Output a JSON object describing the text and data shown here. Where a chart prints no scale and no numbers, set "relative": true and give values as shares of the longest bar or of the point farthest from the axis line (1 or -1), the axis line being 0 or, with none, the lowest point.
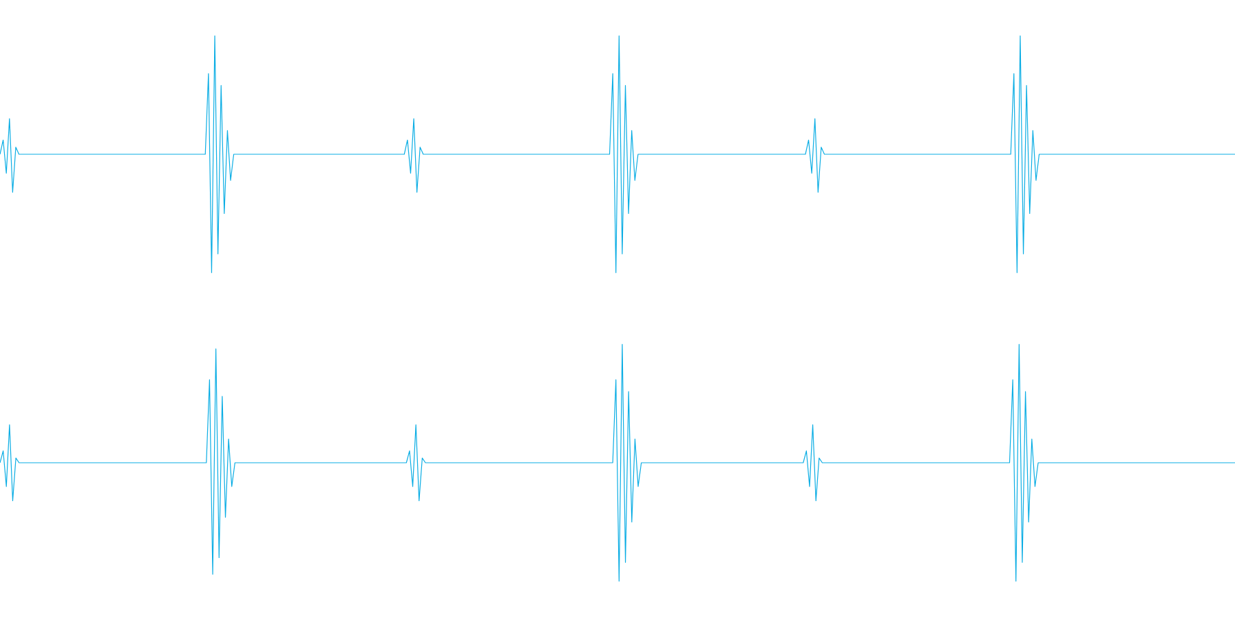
{
  "chart_data": [
    {
      "type": "line",
      "relative": true,
      "marker": "none",
      "line_style": "solid",
      "categories": [
        null,
        null,
        null,
        null,
        null,
        null,
        null,
        null,
        null,
        null,
        null,
        null,
        null,
        null,
        null,
        null,
        null,
        null,
        null,
        null,
        null,
        null,
        null,
        null,
        null,
        null,
        null,
        null,
        null,
        null,
        null,
        null,
        null,
        null,
        null,
        null,
        null,
        null,
        null,
        null,
        null,
        null,
        null,
        null,
        null,
        null,
        null,
        null,
        null,
        null,
        null,
        null,
        null,
        null,
        null,
        null,
        null,
        null,
        null,
        null,
        null,
        null,
        null,
        null,
        null,
        null,
        null,
        null,
        null,
        null,
        null,
        null,
        null,
        null,
        null,
        null,
        null,
        null,
        null,
        null,
        null,
        null,
        null,
        null,
        null,
        null,
        null,
        null,
        null,
        null,
        null,
        null,
        null,
        null,
        null,
        null,
        null,
        null,
        null,
        null,
        null,
        null,
        null,
        null,
        null,
        null,
        null,
        null,
        null,
        null,
        null,
        null,
        null,
        null,
        null,
        null,
        null,
        null,
        null,
        null,
        null,
        null,
        null,
        null,
        null,
        null,
        null,
        null,
        null,
        null,
        null,
        null,
        null,
        null,
        null,
        null,
        null,
        null,
        null,
        null,
        null,
        null,
        null,
        null,
        null,
        null,
        null,
        null,
        null,
        null,
        null,
        null,
        null,
        null,
        null,
        null,
        null,
        null,
        null,
        null,
        null,
        null,
        null,
        null,
        null,
        null,
        null,
        null,
        null,
        null,
        null,
        null,
        null,
        null,
        null,
        null,
        null,
        null,
        null,
        null,
        null,
        null,
        null,
        null,
        null,
        null,
        null,
        null,
        null,
        null,
        null,
        null,
        null,
        null,
        null,
        null,
        null,
        null,
        null,
        null,
        null,
        null,
        null,
        null,
        null,
        null,
        null,
        null,
        null,
        null,
        null,
        null,
        null,
        null,
        null,
        null,
        null,
        null,
        null,
        null,
        null,
        null,
        null,
        null,
        null,
        null,
        null,
        null,
        null,
        null,
        null,
        null,
        null,
        null,
        null,
        null,
        null,
        null,
        null,
        null,
        null,
        null,
        null,
        null,
        null,
        null,
        null,
        null,
        null,
        null,
        null,
        null,
        null,
        null,
        null,
        null,
        null,
        null,
        null,
        null,
        null,
        null,
        null,
        null,
        null,
        null,
        null,
        null,
        null,
        null,
        null,
        null,
        null,
        null,
        null,
        null,
        null,
        null,
        null,
        null,
        null,
        null,
        null,
        null,
        null,
        null,
        null,
        null,
        null,
        null,
        null,
        null,
        null,
        null,
        null,
        null,
        null,
        null,
        null,
        null,
        null,
        null,
        null,
        null,
        null,
        null,
        null,
        null,
        null,
        null,
        null,
        null,
        null,
        null,
        null,
        null,
        null,
        null,
        null,
        null,
        null,
        null,
        null,
        null,
        null,
        null,
        null,
        null,
        null,
        null,
        null,
        null,
        null,
        null,
        null,
        null,
        null,
        null,
        null,
        null,
        null,
        null,
        null,
        null,
        null,
        null,
        null,
        null,
        null,
        null,
        null,
        null,
        null,
        null,
        null,
        null,
        null,
        null,
        null,
        null,
        null,
        null,
        null,
        null,
        null,
        null,
        null,
        null,
        null,
        null,
        null,
        null,
        null,
        null,
        null,
        null,
        null,
        null,
        null,
        null,
        null,
        null,
        null,
        null,
        null,
        null,
        null,
        null,
        null,
        null,
        null,
        null
      ],
      "series": [
        {
          "color": "#0aade4",
          "values": [
            0.5,
            0.56,
            0.42,
            0.65,
            0.34,
            0.53,
            0.5,
            0.5,
            0.5,
            0.5,
            0.5,
            0.5,
            0.5,
            0.5,
            0.5,
            0.5,
            0.5,
            0.5,
            0.5,
            0.5,
            0.5,
            0.5,
            0.5,
            0.5,
            0.5,
            0.5,
            0.5,
            0.5,
            0.5,
            0.5,
            0.5,
            0.5,
            0.5,
            0.5,
            0.5,
            0.5,
            0.5,
            0.5,
            0.5,
            0.5,
            0.5,
            0.5,
            0.5,
            0.5,
            0.5,
            0.5,
            0.5,
            0.5,
            0.5,
            0.5,
            0.5,
            0.5,
            0.5,
            0.5,
            0.5,
            0.5,
            0.5,
            0.5,
            0.5,
            0.5,
            0.5,
            0.5,
            0.5,
            0.5,
            0.5,
            0.5,
            0.84,
            0,
            1,
            0.08,
            0.79,
            0.25,
            0.6,
            0.39,
            0.5,
            0.5,
            0.5,
            0.5,
            0.5,
            0.5,
            0.5,
            0.5,
            0.5,
            0.5,
            0.5,
            0.5,
            0.5,
            0.5,
            0.5,
            0.5,
            0.5,
            0.5,
            0.5,
            0.5,
            0.5,
            0.5,
            0.5,
            0.5,
            0.5,
            0.5,
            0.5,
            0.5,
            0.5,
            0.5,
            0.5,
            0.5,
            0.5,
            0.5,
            0.5,
            0.5,
            0.5,
            0.5,
            0.5,
            0.5,
            0.5,
            0.5,
            0.5,
            0.5,
            0.5,
            0.5,
            0.5,
            0.5,
            0.5,
            0.5,
            0.5,
            0.5,
            0.5,
            0.5,
            0.5,
            0.56,
            0.42,
            0.65,
            0.34,
            0.53,
            0.5,
            0.5,
            0.5,
            0.5,
            0.5,
            0.5,
            0.5,
            0.5,
            0.5,
            0.5,
            0.5,
            0.5,
            0.5,
            0.5,
            0.5,
            0.5,
            0.5,
            0.5,
            0.5,
            0.5,
            0.5,
            0.5,
            0.5,
            0.5,
            0.5,
            0.5,
            0.5,
            0.5,
            0.5,
            0.5,
            0.5,
            0.5,
            0.5,
            0.5,
            0.5,
            0.5,
            0.5,
            0.5,
            0.5,
            0.5,
            0.5,
            0.5,
            0.5,
            0.5,
            0.5,
            0.5,
            0.5,
            0.5,
            0.5,
            0.5,
            0.5,
            0.5,
            0.5,
            0.5,
            0.5,
            0.5,
            0.5,
            0.5,
            0.5,
            0.5,
            0.84,
            0,
            1,
            0.08,
            0.79,
            0.25,
            0.6,
            0.39,
            0.5,
            0.5,
            0.5,
            0.5,
            0.5,
            0.5,
            0.5,
            0.5,
            0.5,
            0.5,
            0.5,
            0.5,
            0.5,
            0.5,
            0.5,
            0.5,
            0.5,
            0.5,
            0.5,
            0.5,
            0.5,
            0.5,
            0.5,
            0.5,
            0.5,
            0.5,
            0.5,
            0.5,
            0.5,
            0.5,
            0.5,
            0.5,
            0.5,
            0.5,
            0.5,
            0.5,
            0.5,
            0.5,
            0.5,
            0.5,
            0.5,
            0.5,
            0.5,
            0.5,
            0.5,
            0.5,
            0.5,
            0.5,
            0.5,
            0.5,
            0.5,
            0.5,
            0.5,
            0.5,
            0.56,
            0.42,
            0.65,
            0.34,
            0.53,
            0.5,
            0.5,
            0.5,
            0.5,
            0.5,
            0.5,
            0.5,
            0.5,
            0.5,
            0.5,
            0.5,
            0.5,
            0.5,
            0.5,
            0.5,
            0.5,
            0.5,
            0.5,
            0.5,
            0.5,
            0.5,
            0.5,
            0.5,
            0.5,
            0.5,
            0.5,
            0.5,
            0.5,
            0.5,
            0.5,
            0.5,
            0.5,
            0.5,
            0.5,
            0.5,
            0.5,
            0.5,
            0.5,
            0.5,
            0.5,
            0.5,
            0.5,
            0.5,
            0.5,
            0.5,
            0.5,
            0.5,
            0.5,
            0.5,
            0.5,
            0.5,
            0.5,
            0.5,
            0.5,
            0.5,
            0.5,
            0.5,
            0.5,
            0.5,
            0.5,
            0.84,
            0,
            1,
            0.08,
            0.79,
            0.25,
            0.6,
            0.39,
            0.5,
            0.5,
            0.5,
            0.5,
            0.5,
            0.5,
            0.5,
            0.5,
            0.5,
            0.5,
            0.5,
            0.5,
            0.5,
            0.5,
            0.5,
            0.5,
            0.5,
            0.5,
            0.5,
            0.5,
            0.5,
            0.5,
            0.5,
            0.5,
            0.5,
            0.5,
            0.5,
            0.5,
            0.5,
            0.5,
            0.5,
            0.5,
            0.5,
            0.5,
            0.5,
            0.5,
            0.5,
            0.5,
            0.5,
            0.5,
            0.5,
            0.5,
            0.5,
            0.5,
            0.5,
            0.5,
            0.5,
            0.5,
            0.5,
            0.5,
            0.5,
            0.5,
            0.5,
            0.5,
            0.5,
            0.5,
            0.5,
            0.5,
            0.5,
            0.5,
            0.5,
            0.5,
            0.5
          ]
        }
      ]
    },
    {
      "type": "line",
      "relative": true,
      "marker": "none",
      "line_style": "solid",
      "categories": [
        null,
        null,
        null,
        null,
        null,
        null,
        null,
        null,
        null,
        null,
        null,
        null,
        null,
        null,
        null,
        null,
        null,
        null,
        null,
        null,
        null,
        null,
        null,
        null,
        null,
        null,
        null,
        null,
        null,
        null,
        null,
        null,
        null,
        null,
        null,
        null,
        null,
        null,
        null,
        null,
        null,
        null,
        null,
        null,
        null,
        null,
        null,
        null,
        null,
        null,
        null,
        null,
        null,
        null,
        null,
        null,
        null,
        null,
        null,
        null,
        null,
        null,
        null,
        null,
        null,
        null,
        null,
        null,
        null,
        null,
        null,
        null,
        null,
        null,
        null,
        null,
        null,
        null,
        null,
        null,
        null,
        null,
        null,
        null,
        null,
        null,
        null,
        null,
        null,
        null,
        null,
        null,
        null,
        null,
        null,
        null,
        null,
        null,
        null,
        null,
        null,
        null,
        null,
        null,
        null,
        null,
        null,
        null,
        null,
        null,
        null,
        null,
        null,
        null,
        null,
        null,
        null,
        null,
        null,
        null,
        null,
        null,
        null,
        null,
        null,
        null,
        null,
        null,
        null,
        null,
        null,
        null,
        null,
        null,
        null,
        null,
        null,
        null,
        null,
        null,
        null,
        null,
        null,
        null,
        null,
        null,
        null,
        null,
        null,
        null,
        null,
        null,
        null,
        null,
        null,
        null,
        null,
        null,
        null,
        null,
        null,
        null,
        null,
        null,
        null,
        null,
        null,
        null,
        null,
        null,
        null,
        null,
        null,
        null,
        null,
        null,
        null,
        null,
        null,
        null,
        null,
        null,
        null,
        null,
        null,
        null,
        null,
        null,
        null,
        null,
        null,
        null,
        null,
        null,
        null,
        null,
        null,
        null,
        null,
        null,
        null,
        null,
        null,
        null,
        null,
        null,
        null,
        null,
        null,
        null,
        null,
        null,
        null,
        null,
        null,
        null,
        null,
        null,
        null,
        null,
        null,
        null,
        null,
        null,
        null,
        null,
        null,
        null,
        null,
        null,
        null,
        null,
        null,
        null,
        null,
        null,
        null,
        null,
        null,
        null,
        null,
        null,
        null,
        null,
        null,
        null,
        null,
        null,
        null,
        null,
        null,
        null,
        null,
        null,
        null,
        null,
        null,
        null,
        null,
        null,
        null,
        null,
        null,
        null,
        null,
        null,
        null,
        null,
        null,
        null,
        null,
        null,
        null,
        null,
        null,
        null,
        null,
        null,
        null,
        null,
        null,
        null,
        null,
        null,
        null,
        null,
        null,
        null,
        null,
        null,
        null,
        null,
        null,
        null,
        null,
        null,
        null,
        null,
        null,
        null,
        null,
        null,
        null,
        null,
        null,
        null,
        null,
        null,
        null,
        null,
        null,
        null,
        null,
        null,
        null,
        null,
        null,
        null,
        null,
        null,
        null,
        null,
        null,
        null,
        null,
        null,
        null,
        null,
        null,
        null,
        null,
        null,
        null,
        null,
        null,
        null,
        null,
        null,
        null,
        null,
        null,
        null,
        null,
        null,
        null,
        null,
        null,
        null,
        null,
        null,
        null,
        null,
        null,
        null,
        null,
        null,
        null,
        null,
        null,
        null,
        null,
        null,
        null,
        null,
        null,
        null,
        null,
        null,
        null,
        null,
        null,
        null,
        null,
        null,
        null,
        null,
        null,
        null,
        null,
        null,
        null,
        null,
        null,
        null,
        null,
        null,
        null,
        null,
        null,
        null
      ],
      "series": [
        {
          "color": "#0aade4",
          "values": [
            0.5,
            0.55,
            0.4,
            0.66,
            0.34,
            0.52,
            0.5,
            0.5,
            0.5,
            0.5,
            0.5,
            0.5,
            0.5,
            0.5,
            0.5,
            0.5,
            0.5,
            0.5,
            0.5,
            0.5,
            0.5,
            0.5,
            0.5,
            0.5,
            0.5,
            0.5,
            0.5,
            0.5,
            0.5,
            0.5,
            0.5,
            0.5,
            0.5,
            0.5,
            0.5,
            0.5,
            0.5,
            0.5,
            0.5,
            0.5,
            0.5,
            0.5,
            0.5,
            0.5,
            0.5,
            0.5,
            0.5,
            0.5,
            0.5,
            0.5,
            0.5,
            0.5,
            0.5,
            0.5,
            0.5,
            0.5,
            0.5,
            0.5,
            0.5,
            0.5,
            0.5,
            0.5,
            0.5,
            0.5,
            0.5,
            0.5,
            0.85,
            0.03,
            0.98,
            0.1,
            0.78,
            0.27,
            0.6,
            0.4,
            0.5,
            0.5,
            0.5,
            0.5,
            0.5,
            0.5,
            0.5,
            0.5,
            0.5,
            0.5,
            0.5,
            0.5,
            0.5,
            0.5,
            0.5,
            0.5,
            0.5,
            0.5,
            0.5,
            0.5,
            0.5,
            0.5,
            0.5,
            0.5,
            0.5,
            0.5,
            0.5,
            0.5,
            0.5,
            0.5,
            0.5,
            0.5,
            0.5,
            0.5,
            0.5,
            0.5,
            0.5,
            0.5,
            0.5,
            0.5,
            0.5,
            0.5,
            0.5,
            0.5,
            0.5,
            0.5,
            0.5,
            0.5,
            0.5,
            0.5,
            0.5,
            0.5,
            0.5,
            0.5,
            0.5,
            0.55,
            0.4,
            0.66,
            0.34,
            0.52,
            0.5,
            0.5,
            0.5,
            0.5,
            0.5,
            0.5,
            0.5,
            0.5,
            0.5,
            0.5,
            0.5,
            0.5,
            0.5,
            0.5,
            0.5,
            0.5,
            0.5,
            0.5,
            0.5,
            0.5,
            0.5,
            0.5,
            0.5,
            0.5,
            0.5,
            0.5,
            0.5,
            0.5,
            0.5,
            0.5,
            0.5,
            0.5,
            0.5,
            0.5,
            0.5,
            0.5,
            0.5,
            0.5,
            0.5,
            0.5,
            0.5,
            0.5,
            0.5,
            0.5,
            0.5,
            0.5,
            0.5,
            0.5,
            0.5,
            0.5,
            0.5,
            0.5,
            0.5,
            0.5,
            0.5,
            0.5,
            0.5,
            0.5,
            0.5,
            0.5,
            0.85,
            0,
            1,
            0.08,
            0.8,
            0.25,
            0.6,
            0.4,
            0.5,
            0.5,
            0.5,
            0.5,
            0.5,
            0.5,
            0.5,
            0.5,
            0.5,
            0.5,
            0.5,
            0.5,
            0.5,
            0.5,
            0.5,
            0.5,
            0.5,
            0.5,
            0.5,
            0.5,
            0.5,
            0.5,
            0.5,
            0.5,
            0.5,
            0.5,
            0.5,
            0.5,
            0.5,
            0.5,
            0.5,
            0.5,
            0.5,
            0.5,
            0.5,
            0.5,
            0.5,
            0.5,
            0.5,
            0.5,
            0.5,
            0.5,
            0.5,
            0.5,
            0.5,
            0.5,
            0.5,
            0.5,
            0.5,
            0.5,
            0.5,
            0.5,
            0.55,
            0.4,
            0.66,
            0.34,
            0.52,
            0.5,
            0.5,
            0.5,
            0.5,
            0.5,
            0.5,
            0.5,
            0.5,
            0.5,
            0.5,
            0.5,
            0.5,
            0.5,
            0.5,
            0.5,
            0.5,
            0.5,
            0.5,
            0.5,
            0.5,
            0.5,
            0.5,
            0.5,
            0.5,
            0.5,
            0.5,
            0.5,
            0.5,
            0.5,
            0.5,
            0.5,
            0.5,
            0.5,
            0.5,
            0.5,
            0.5,
            0.5,
            0.5,
            0.5,
            0.5,
            0.5,
            0.5,
            0.5,
            0.5,
            0.5,
            0.5,
            0.5,
            0.5,
            0.5,
            0.5,
            0.5,
            0.5,
            0.5,
            0.5,
            0.5,
            0.5,
            0.5,
            0.5,
            0.5,
            0.5,
            0.85,
            0,
            1,
            0.08,
            0.8,
            0.25,
            0.6,
            0.4,
            0.5,
            0.5,
            0.5,
            0.5,
            0.5,
            0.5,
            0.5,
            0.5,
            0.5,
            0.5,
            0.5,
            0.5,
            0.5,
            0.5,
            0.5,
            0.5,
            0.5,
            0.5,
            0.5,
            0.5,
            0.5,
            0.5,
            0.5,
            0.5,
            0.5,
            0.5,
            0.5,
            0.5,
            0.5,
            0.5,
            0.5,
            0.5,
            0.5,
            0.5,
            0.5,
            0.5,
            0.5,
            0.5,
            0.5,
            0.5,
            0.5,
            0.5,
            0.5,
            0.5,
            0.5,
            0.5,
            0.5,
            0.5,
            0.5,
            0.5,
            0.5,
            0.5,
            0.5,
            0.5,
            0.5,
            0.5,
            0.5,
            0.5,
            0.5,
            0.5,
            0.5,
            0.5,
            0.5
          ]
        }
      ]
    }
  ]
}
